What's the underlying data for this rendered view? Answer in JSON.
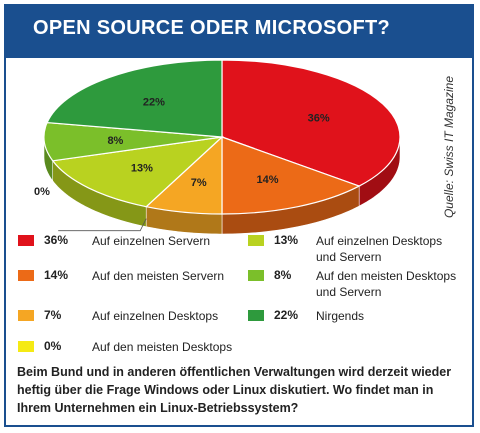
{
  "title": "OPEN SOURCE ODER MICROSOFT?",
  "source": "Quelle: Swiss IT Magazine",
  "question": "Beim Bund und in anderen öffentlichen Verwaltungen wird derzeit wieder heftig über die Frage Windows oder Linux diskutiert. Wo findet man in Ihrem Unternehmen ein Linux-Betriebssystem?",
  "legend": [
    {
      "value": "36%",
      "label": "Auf einzelnen Servern",
      "color": "#e0121b"
    },
    {
      "value": "14%",
      "label": "Auf den meisten Servern",
      "color": "#ec6a17"
    },
    {
      "value": "7%",
      "label": "Auf einzelnen Desktops",
      "color": "#f5a623"
    },
    {
      "value": "0%",
      "label": "Auf den meisten Desktops",
      "color": "#f5ea14"
    },
    {
      "value": "13%",
      "label": "Auf einzelnen Desktops\nund Servern",
      "color": "#b9d220"
    },
    {
      "value": "8%",
      "label": "Auf den meisten Desktops\nund Servern",
      "color": "#7bbf2a"
    },
    {
      "value": "22%",
      "label": "Nirgends",
      "color": "#2e9a3d"
    }
  ],
  "chart_data": {
    "type": "pie",
    "title": "OPEN SOURCE ODER MICROSOFT?",
    "slices": [
      {
        "label": "Auf einzelnen Servern",
        "value": 36,
        "color": "#e0121b"
      },
      {
        "label": "Auf den meisten Servern",
        "value": 14,
        "color": "#ec6a17"
      },
      {
        "label": "Auf einzelnen Desktops",
        "value": 7,
        "color": "#f5a623"
      },
      {
        "label": "Auf den meisten Desktops",
        "value": 0,
        "color": "#f5ea14"
      },
      {
        "label": "Auf einzelnen Desktops und Servern",
        "value": 13,
        "color": "#b9d220"
      },
      {
        "label": "Auf den meisten Desktops und Servern",
        "value": 8,
        "color": "#7bbf2a"
      },
      {
        "label": "Nirgends",
        "value": 22,
        "color": "#2e9a3d"
      }
    ],
    "data_labels": [
      "36%",
      "14%",
      "7%",
      "0%",
      "13%",
      "8%",
      "22%"
    ]
  }
}
